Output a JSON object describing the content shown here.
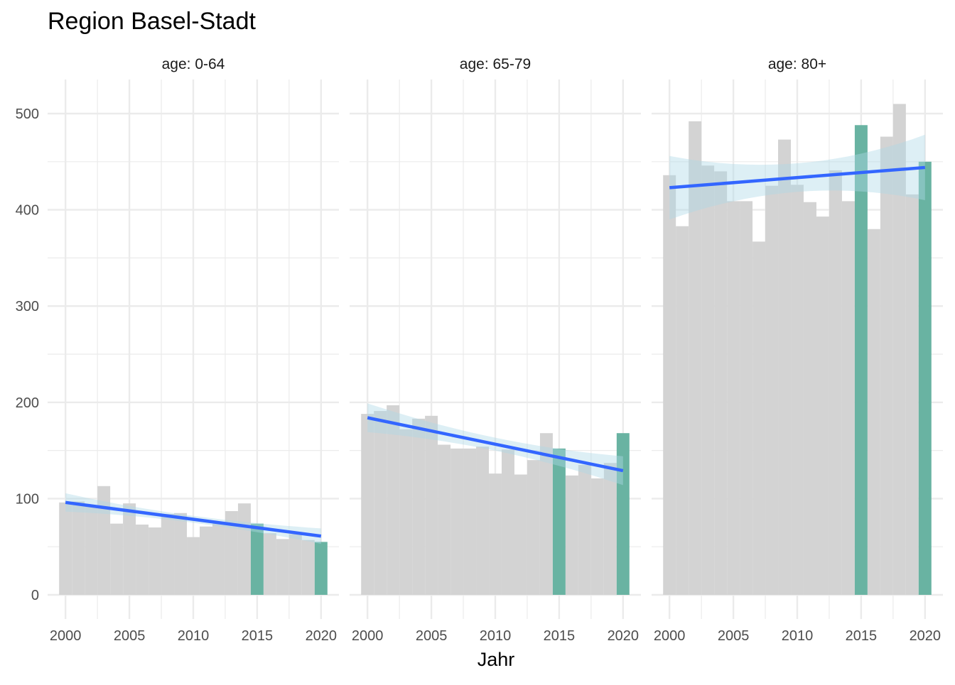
{
  "title": "Region Basel-Stadt",
  "chart_data": {
    "type": "bar",
    "title": "Region Basel-Stadt",
    "xlabel": "Jahr",
    "ylabel": "",
    "ylim": [
      0,
      530
    ],
    "xlim": [
      1999.5,
      2020.5
    ],
    "x_ticks": [
      2000,
      2005,
      2010,
      2015,
      2020
    ],
    "y_ticks": [
      0,
      100,
      200,
      300,
      400,
      500
    ],
    "grid": true,
    "highlight_years": [
      2015,
      2020
    ],
    "colors": {
      "bar": "#d3d3d3",
      "highlight": "#69b3a2",
      "trend": "#3366ff",
      "ribbon": "#add8e6",
      "grid": "#ebebeb"
    },
    "years": [
      2000,
      2001,
      2002,
      2003,
      2004,
      2005,
      2006,
      2007,
      2008,
      2009,
      2010,
      2011,
      2012,
      2013,
      2014,
      2015,
      2016,
      2017,
      2018,
      2019,
      2020
    ],
    "panels": [
      {
        "label": "age: 0-64",
        "values": [
          96,
          97,
          92,
          113,
          74,
          95,
          73,
          70,
          84,
          85,
          60,
          71,
          74,
          87,
          95,
          74,
          64,
          58,
          63,
          57,
          55
        ],
        "trend": {
          "start": 96,
          "end": 61,
          "ci_start": [
            87,
            106
          ],
          "ci_end": [
            53,
            69
          ]
        }
      },
      {
        "label": "age: 65-79",
        "values": [
          188,
          191,
          197,
          172,
          183,
          186,
          156,
          152,
          152,
          154,
          126,
          151,
          125,
          140,
          168,
          152,
          124,
          135,
          121,
          137,
          168
        ],
        "trend": {
          "start": 184,
          "end": 129,
          "ci_start": [
            169,
            199
          ],
          "ci_end": [
            114,
            144
          ]
        }
      },
      {
        "label": "age: 80+",
        "values": [
          436,
          383,
          492,
          446,
          440,
          409,
          409,
          367,
          425,
          473,
          426,
          408,
          393,
          441,
          409,
          488,
          380,
          476,
          510,
          416,
          450
        ],
        "trend": {
          "start": 423,
          "end": 444,
          "ci_start": [
            390,
            456
          ],
          "ci_end": [
            410,
            478
          ]
        }
      }
    ]
  }
}
